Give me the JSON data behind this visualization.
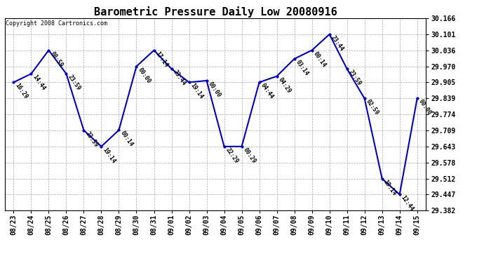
{
  "title": "Barometric Pressure Daily Low 20080916",
  "copyright_text": "Copyright 2008 Cartronics.com",
  "background_color": "#ffffff",
  "plot_bg_color": "#ffffff",
  "grid_color": "#aaaaaa",
  "line_color": "#0000bb",
  "marker_color": "#0000bb",
  "points": [
    {
      "date": "08/23",
      "value": 29.905,
      "time": "16:29"
    },
    {
      "date": "08/24",
      "value": 29.94,
      "time": "14:44"
    },
    {
      "date": "08/25",
      "value": 30.036,
      "time": "00:59"
    },
    {
      "date": "08/26",
      "value": 29.94,
      "time": "23:59"
    },
    {
      "date": "08/27",
      "value": 29.709,
      "time": "23:59"
    },
    {
      "date": "08/28",
      "value": 29.643,
      "time": "19:14"
    },
    {
      "date": "08/29",
      "value": 29.71,
      "time": "00:14"
    },
    {
      "date": "08/30",
      "value": 29.97,
      "time": "00:00"
    },
    {
      "date": "08/31",
      "value": 30.036,
      "time": "17:14"
    },
    {
      "date": "09/01",
      "value": 29.96,
      "time": "23:44"
    },
    {
      "date": "09/02",
      "value": 29.905,
      "time": "19:14"
    },
    {
      "date": "09/03",
      "value": 29.912,
      "time": "00:00"
    },
    {
      "date": "09/04",
      "value": 29.643,
      "time": "22:29"
    },
    {
      "date": "09/05",
      "value": 29.643,
      "time": "00:29"
    },
    {
      "date": "09/06",
      "value": 29.905,
      "time": "04:44"
    },
    {
      "date": "09/07",
      "value": 29.93,
      "time": "04:29"
    },
    {
      "date": "09/08",
      "value": 30.001,
      "time": "03:14"
    },
    {
      "date": "09/09",
      "value": 30.036,
      "time": "00:14"
    },
    {
      "date": "09/10",
      "value": 30.101,
      "time": "23:44"
    },
    {
      "date": "09/11",
      "value": 29.96,
      "time": "23:59"
    },
    {
      "date": "09/12",
      "value": 29.839,
      "time": "02:59"
    },
    {
      "date": "09/13",
      "value": 29.512,
      "time": "19:14"
    },
    {
      "date": "09/14",
      "value": 29.447,
      "time": "12:44"
    },
    {
      "date": "09/15",
      "value": 29.839,
      "time": "00:00"
    }
  ],
  "ylim": [
    29.382,
    30.166
  ],
  "yticks": [
    29.382,
    29.447,
    29.512,
    29.578,
    29.643,
    29.709,
    29.774,
    29.839,
    29.905,
    29.97,
    30.036,
    30.101,
    30.166
  ],
  "title_fontsize": 11,
  "tick_fontsize": 7,
  "label_fontsize": 6,
  "copyright_fontsize": 6
}
